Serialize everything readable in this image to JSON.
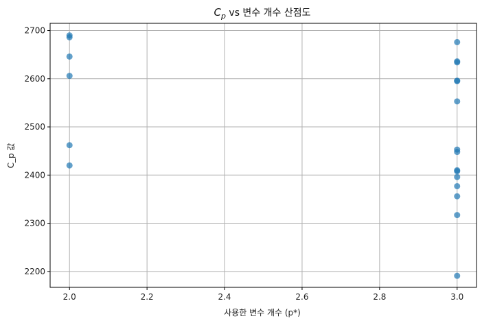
{
  "chart_data": {
    "type": "scatter",
    "title_main": "C",
    "title_sub": "p",
    "title_rest": " vs 변수 개수 산점도",
    "xlabel": "사용한 변수 개수 (p*)",
    "ylabel": "C_p 값",
    "xlim": [
      1.95,
      3.05
    ],
    "ylim": [
      2167,
      2715
    ],
    "xticks": [
      2.0,
      2.2,
      2.4,
      2.6,
      2.8,
      3.0
    ],
    "xtick_labels": [
      "2.0",
      "2.2",
      "2.4",
      "2.6",
      "2.8",
      "3.0"
    ],
    "yticks": [
      2200,
      2300,
      2400,
      2500,
      2600,
      2700
    ],
    "ytick_labels": [
      "2200",
      "2300",
      "2400",
      "2500",
      "2600",
      "2700"
    ],
    "grid": true,
    "marker_color": "#1f77b4",
    "marker_alpha": 0.7,
    "points": [
      {
        "x": 2.0,
        "y": 2690
      },
      {
        "x": 2.0,
        "y": 2686
      },
      {
        "x": 2.0,
        "y": 2646
      },
      {
        "x": 2.0,
        "y": 2606
      },
      {
        "x": 2.0,
        "y": 2462
      },
      {
        "x": 2.0,
        "y": 2420
      },
      {
        "x": 3.0,
        "y": 2676
      },
      {
        "x": 3.0,
        "y": 2636
      },
      {
        "x": 3.0,
        "y": 2634
      },
      {
        "x": 3.0,
        "y": 2596
      },
      {
        "x": 3.0,
        "y": 2595
      },
      {
        "x": 3.0,
        "y": 2553
      },
      {
        "x": 3.0,
        "y": 2453
      },
      {
        "x": 3.0,
        "y": 2448
      },
      {
        "x": 3.0,
        "y": 2410
      },
      {
        "x": 3.0,
        "y": 2408
      },
      {
        "x": 3.0,
        "y": 2396
      },
      {
        "x": 3.0,
        "y": 2377
      },
      {
        "x": 3.0,
        "y": 2356
      },
      {
        "x": 3.0,
        "y": 2317
      },
      {
        "x": 3.0,
        "y": 2191
      }
    ]
  }
}
